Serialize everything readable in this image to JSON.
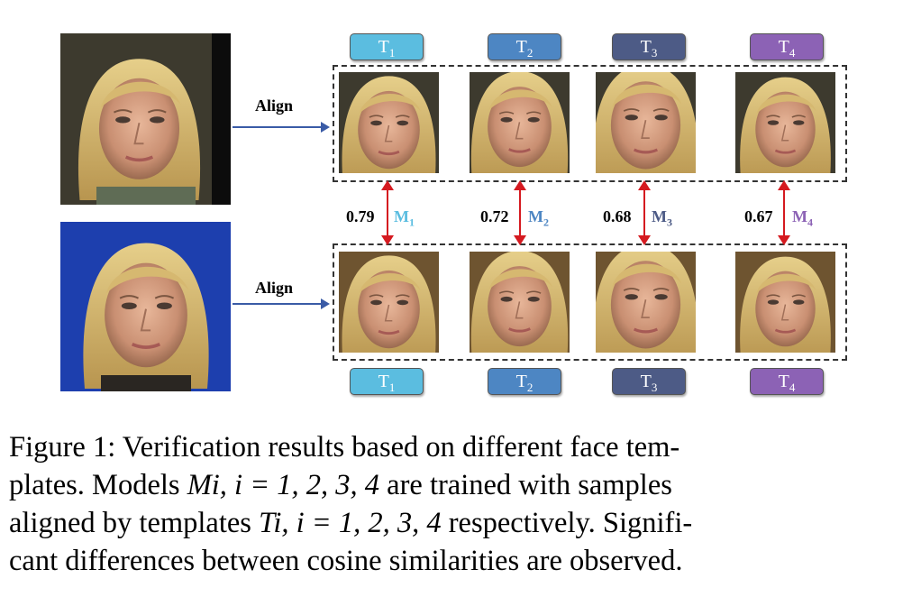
{
  "colors": {
    "t1": "#5bbde0",
    "t2": "#4d86c3",
    "t3": "#4d5b86",
    "t4": "#8c62b5",
    "arrow": "#3a5ba6",
    "similarity_arrow": "#d51a20"
  },
  "align_label": "Align",
  "templates": [
    {
      "label": "T",
      "sub": "1"
    },
    {
      "label": "T",
      "sub": "2"
    },
    {
      "label": "T",
      "sub": "3"
    },
    {
      "label": "T",
      "sub": "4"
    }
  ],
  "models": [
    {
      "label": "M",
      "sub": "1",
      "score": "0.79"
    },
    {
      "label": "M",
      "sub": "2",
      "score": "0.72"
    },
    {
      "label": "M",
      "sub": "3",
      "score": "0.68"
    },
    {
      "label": "M",
      "sub": "4",
      "score": "0.67"
    }
  ],
  "caption": {
    "line1": "Figure 1: Verification results based on different face tem-",
    "line2_a": "plates. Models ",
    "line2_math": "Mi, i = 1, 2, 3, 4",
    "line2_b": " are trained with samples",
    "line3_a": "aligned by templates ",
    "line3_math": "Ti, i = 1, 2, 3, 4",
    "line3_b": " respectively. Signifi-",
    "line4": "cant differences between cosine similarities are observed."
  }
}
